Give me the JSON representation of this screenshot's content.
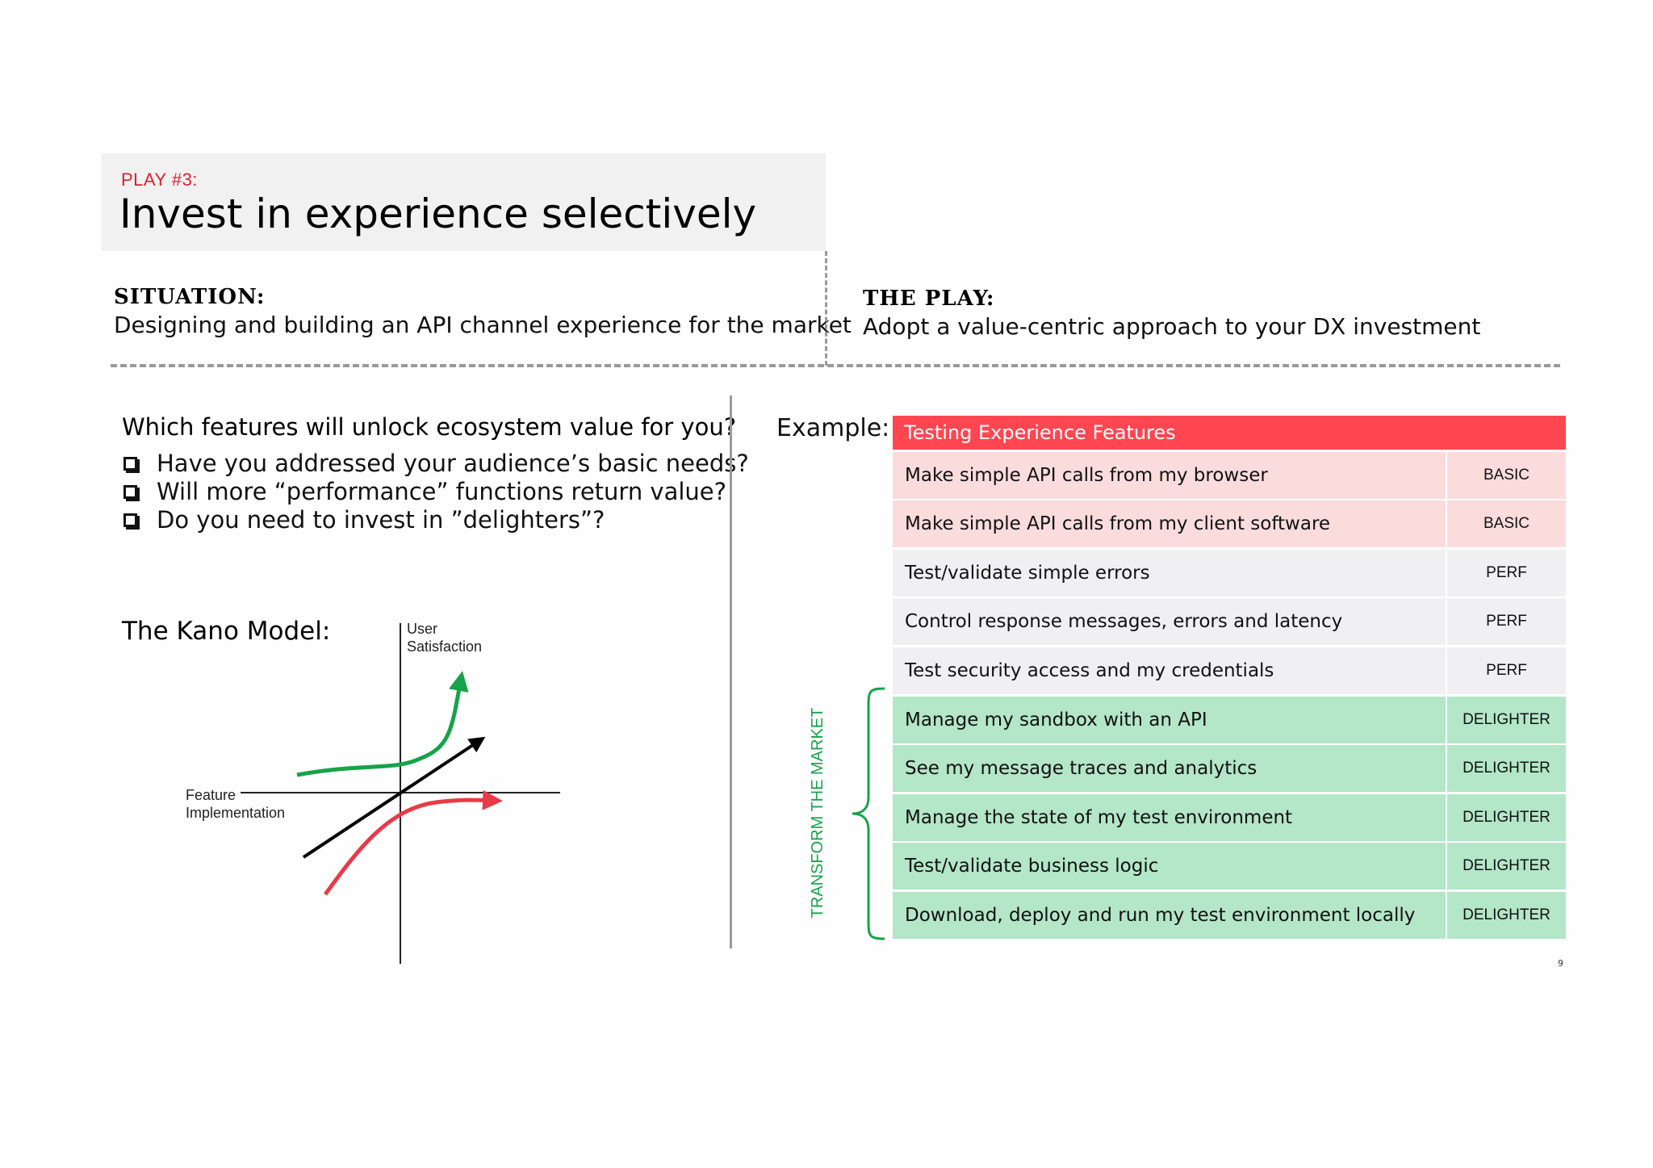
{
  "header": {
    "play_label": "PLAY #3:",
    "title": "Invest in experience selectively"
  },
  "situation": {
    "heading": "SITUATION:",
    "text": "Designing and building an API channel experience for the market"
  },
  "the_play": {
    "heading": "THE PLAY:",
    "text": "Adopt a value-centric approach to your DX investment"
  },
  "left": {
    "question": "Which features will unlock ecosystem value for you?",
    "checklist": [
      "Have you addressed your audience’s basic needs?",
      "Will more “performance” functions return value?",
      "Do you need to invest in ”delighters”?"
    ],
    "kano_label": "The Kano Model:",
    "kano": {
      "y_axis_label_line1": "User",
      "y_axis_label_line2": "Satisfaction",
      "x_axis_label_line1": "Feature",
      "x_axis_label_line2": "Implementation",
      "colors": {
        "delighter": "#16a34a",
        "performance": "#000000",
        "basic": "#e83a47"
      }
    }
  },
  "example": {
    "label": "Example:",
    "table_title": "Testing Experience Features",
    "rows": [
      {
        "feature": "Make simple API calls from my browser",
        "category": "BASIC",
        "kind": "basic"
      },
      {
        "feature": "Make simple API calls from my client software",
        "category": "BASIC",
        "kind": "basic"
      },
      {
        "feature": "Test/validate simple errors",
        "category": "PERF",
        "kind": "perf"
      },
      {
        "feature": "Control response messages, errors and latency",
        "category": "PERF",
        "kind": "perf"
      },
      {
        "feature": "Test security access and my credentials",
        "category": "PERF",
        "kind": "perf"
      },
      {
        "feature": "Manage my sandbox with an API",
        "category": "DELIGHTER",
        "kind": "delighter"
      },
      {
        "feature": "See my message traces and analytics",
        "category": "DELIGHTER",
        "kind": "delighter"
      },
      {
        "feature": "Manage the state of my test environment",
        "category": "DELIGHTER",
        "kind": "delighter"
      },
      {
        "feature": "Test/validate business logic",
        "category": "DELIGHTER",
        "kind": "delighter"
      },
      {
        "feature": "Download, deploy and run my test environment locally",
        "category": "DELIGHTER",
        "kind": "delighter"
      }
    ],
    "transform_label": "TRANSFORM THE MARKET",
    "colors": {
      "title_bg": "#ff4651",
      "basic": "#fadcdd",
      "perf": "#f0f0f2",
      "delighter": "#b4e6c8",
      "brace": "#16a34a"
    }
  },
  "page_number": "9"
}
